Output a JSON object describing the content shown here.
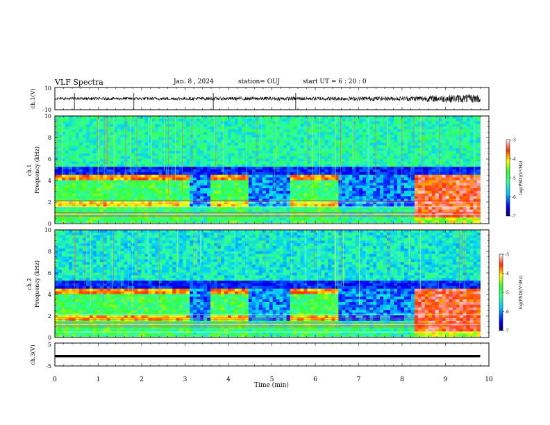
{
  "header": {
    "title": "VLF Spectra",
    "date": "Jan. 8 , 2024",
    "station": "station= OUJ",
    "start": "start UT = 6 : 20 : 0"
  },
  "chart_data": [
    {
      "type": "line",
      "ylabel": "ch.1(V)",
      "ylim": [
        -10,
        10
      ],
      "yticks": [
        "10",
        "-10"
      ],
      "x": [
        0,
        10
      ],
      "description_series": "waveform",
      "amplitude_by_minute": [
        [
          0,
          1.2
        ],
        [
          3,
          1.5
        ],
        [
          5,
          1.6
        ],
        [
          8,
          2.0
        ],
        [
          9,
          3.5
        ],
        [
          9.8,
          4.0
        ]
      ]
    },
    {
      "type": "heatmap",
      "ylabel": "ch.1 Frequency (kHz)",
      "ylim": [
        0,
        10
      ],
      "yticks": [
        "0",
        "2",
        "4",
        "6",
        "8",
        "10"
      ],
      "xlim": [
        0,
        10
      ],
      "colorbar": {
        "label": "log(PSD)(V²/Hz)",
        "range": [
          -7,
          -3
        ],
        "ticks": [
          "-3",
          "-4",
          "-5",
          "-6",
          "-7"
        ]
      },
      "segments_minutes": [
        {
          "t0": 0.0,
          "t1": 3.1,
          "state": "hiss band 0–4.5 kHz"
        },
        {
          "t0": 3.1,
          "t1": 3.6,
          "state": "weak"
        },
        {
          "t0": 3.6,
          "t1": 4.5,
          "state": "hiss band 0–4.5 kHz"
        },
        {
          "t0": 4.5,
          "t1": 4.85,
          "state": "weak"
        },
        {
          "t0": 4.85,
          "t1": 5.45,
          "state": "weak"
        },
        {
          "t0": 5.45,
          "t1": 6.55,
          "state": "hiss band 0–4.5 kHz"
        },
        {
          "t0": 6.55,
          "t1": 8.25,
          "state": "weak"
        },
        {
          "t0": 8.25,
          "t1": 9.8,
          "state": "strong 0–4.5 kHz"
        }
      ]
    },
    {
      "type": "heatmap",
      "ylabel": "ch.2 Frequency (kHz)",
      "ylim": [
        0,
        10
      ],
      "yticks": [
        "0",
        "2",
        "4",
        "6",
        "8",
        "10"
      ],
      "xlim": [
        0,
        10
      ],
      "colorbar": {
        "label": "log(PSD)(V²/Hz)",
        "range": [
          -7,
          -3
        ],
        "ticks": [
          "-3",
          "-4",
          "-5",
          "-6",
          "-7"
        ]
      }
    },
    {
      "type": "line",
      "ylabel": "ch.3(V)",
      "ylim": [
        -5,
        5
      ],
      "yticks": [
        "5",
        "-5"
      ],
      "xlabel": "Time (min)",
      "xticks": [
        "0",
        "1",
        "2",
        "3",
        "4",
        "5",
        "6",
        "7",
        "8",
        "9",
        "10"
      ],
      "xlim": [
        0,
        10
      ],
      "constant_value": -1.5
    }
  ]
}
